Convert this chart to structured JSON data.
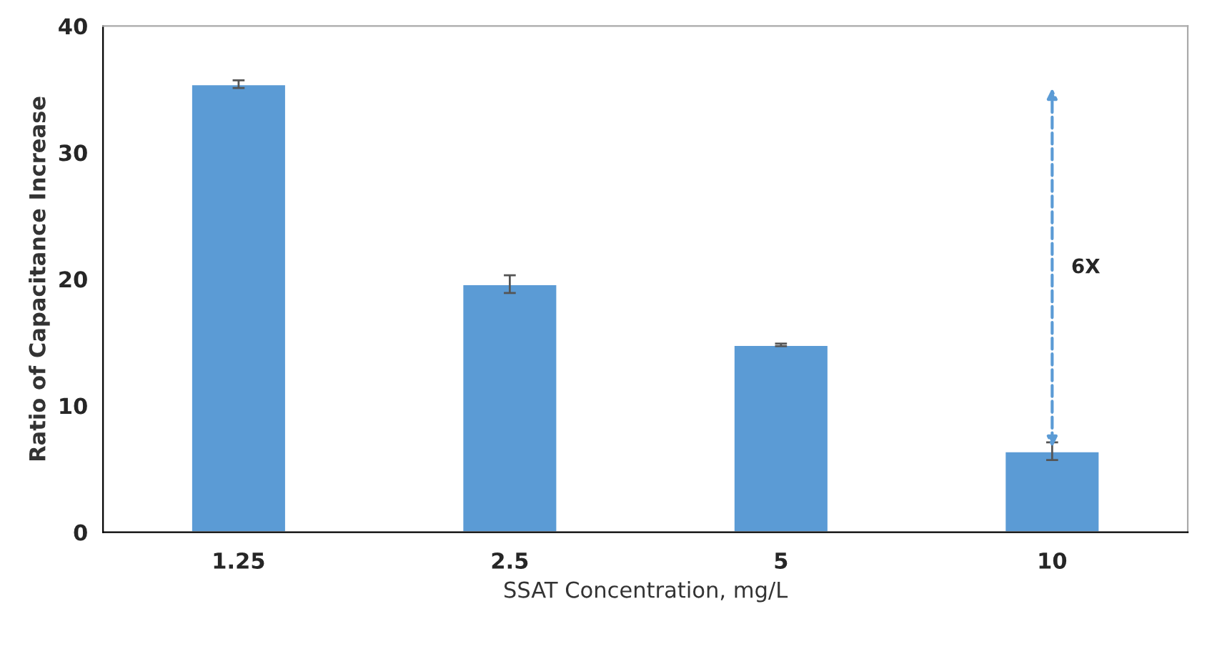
{
  "chart_data": {
    "type": "bar",
    "xlabel": "SSAT Concentration, mg/L",
    "ylabel": "Ratio of Capacitance Increase",
    "categories": [
      "1.25",
      "2.5",
      "5",
      "10"
    ],
    "values": [
      35.4,
      19.6,
      14.8,
      6.4
    ],
    "errors": [
      0.3,
      0.7,
      0.1,
      0.7
    ],
    "color": "#5b9bd5",
    "ylim": [
      0,
      40
    ],
    "yticks": [
      0,
      10,
      20,
      30,
      40
    ],
    "grid": false,
    "annotations": [
      "6X"
    ]
  }
}
